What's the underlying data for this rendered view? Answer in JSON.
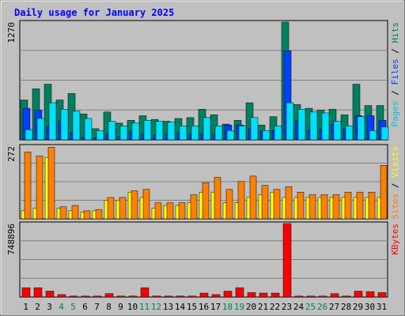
{
  "chart_data": {
    "type": "bar",
    "title": "Daily usage for January 2025",
    "categories": [
      "1",
      "2",
      "3",
      "4",
      "5",
      "6",
      "7",
      "8",
      "9",
      "10",
      "11",
      "12",
      "13",
      "14",
      "15",
      "16",
      "17",
      "18",
      "19",
      "20",
      "21",
      "22",
      "23",
      "24",
      "25",
      "26",
      "27",
      "28",
      "29",
      "30",
      "31"
    ],
    "weekend_days": [
      "4",
      "5",
      "11",
      "12",
      "18",
      "19",
      "25",
      "26"
    ],
    "panels": [
      {
        "id": "pages-files-hits",
        "ymax_label": "1270",
        "ylim": [
          0,
          1270
        ],
        "right_label_parts": [
          {
            "text": "Pages",
            "color": "#00c0e0"
          },
          {
            "text": " / ",
            "color": "#000000"
          },
          {
            "text": "Files",
            "color": "#0040ff"
          },
          {
            "text": " / ",
            "color": "#000000"
          },
          {
            "text": "Hits",
            "color": "#008060"
          }
        ],
        "series": [
          {
            "name": "Hits",
            "color": "#008060",
            "values": [
              430,
              550,
              600,
              430,
              500,
              280,
              120,
              300,
              180,
              210,
              260,
              220,
              200,
              230,
              240,
              330,
              270,
              170,
              210,
              400,
              160,
              250,
              1270,
              380,
              340,
              320,
              330,
              270,
              600,
              370,
              370
            ]
          },
          {
            "name": "Files",
            "color": "#0040ff",
            "values": [
              340,
              320,
              140,
              200,
              80,
              30,
              20,
              60,
              40,
              90,
              60,
              50,
              60,
              70,
              60,
              60,
              60,
              160,
              160,
              120,
              100,
              100,
              960,
              200,
              100,
              110,
              170,
              120,
              260,
              260,
              210
            ]
          },
          {
            "name": "Pages",
            "color": "#00e0ff",
            "values": [
              110,
              230,
              400,
              330,
              310,
              230,
              100,
              200,
              150,
              180,
              210,
              200,
              190,
              150,
              150,
              240,
              150,
              100,
              150,
              240,
              100,
              150,
              400,
              330,
              300,
              290,
              200,
              150,
              250,
              100,
              140
            ]
          }
        ]
      },
      {
        "id": "sites-visits",
        "ymax_label": "272",
        "ylim": [
          0,
          272
        ],
        "right_label_parts": [
          {
            "text": "Sites",
            "color": "#ff8000"
          },
          {
            "text": " / ",
            "color": "#000000"
          },
          {
            "text": "Visits",
            "color": "#ffff00"
          }
        ],
        "series": [
          {
            "name": "Visits",
            "color": "#ffff00",
            "values": [
              30,
              40,
              230,
              40,
              30,
              25,
              30,
              70,
              70,
              100,
              80,
              40,
              50,
              50,
              60,
              100,
              100,
              60,
              60,
              80,
              90,
              100,
              80,
              80,
              80,
              80,
              80,
              80,
              80,
              80,
              80
            ]
          },
          {
            "name": "Sites",
            "color": "#ff8000",
            "values": [
              250,
              235,
              268,
              45,
              50,
              30,
              35,
              80,
              80,
              105,
              110,
              60,
              60,
              60,
              90,
              135,
              155,
              110,
              140,
              160,
              125,
              110,
              120,
              100,
              90,
              90,
              90,
              100,
              100,
              100,
              200
            ]
          }
        ]
      },
      {
        "id": "kbytes",
        "ymax_label": "748896",
        "ylim": [
          0,
          748896
        ],
        "right_label_parts": [
          {
            "text": "KBytes",
            "color": "#ff0000"
          }
        ],
        "series": [
          {
            "name": "KBytes",
            "color": "#ff0000",
            "values": [
              95000,
              95000,
              60000,
              25000,
              10000,
              10000,
              10000,
              35000,
              10000,
              10000,
              95000,
              10000,
              10000,
              10000,
              10000,
              40000,
              25000,
              60000,
              95000,
              45000,
              40000,
              40000,
              748896,
              10000,
              10000,
              10000,
              35000,
              10000,
              60000,
              55000,
              45000
            ]
          }
        ]
      }
    ]
  }
}
